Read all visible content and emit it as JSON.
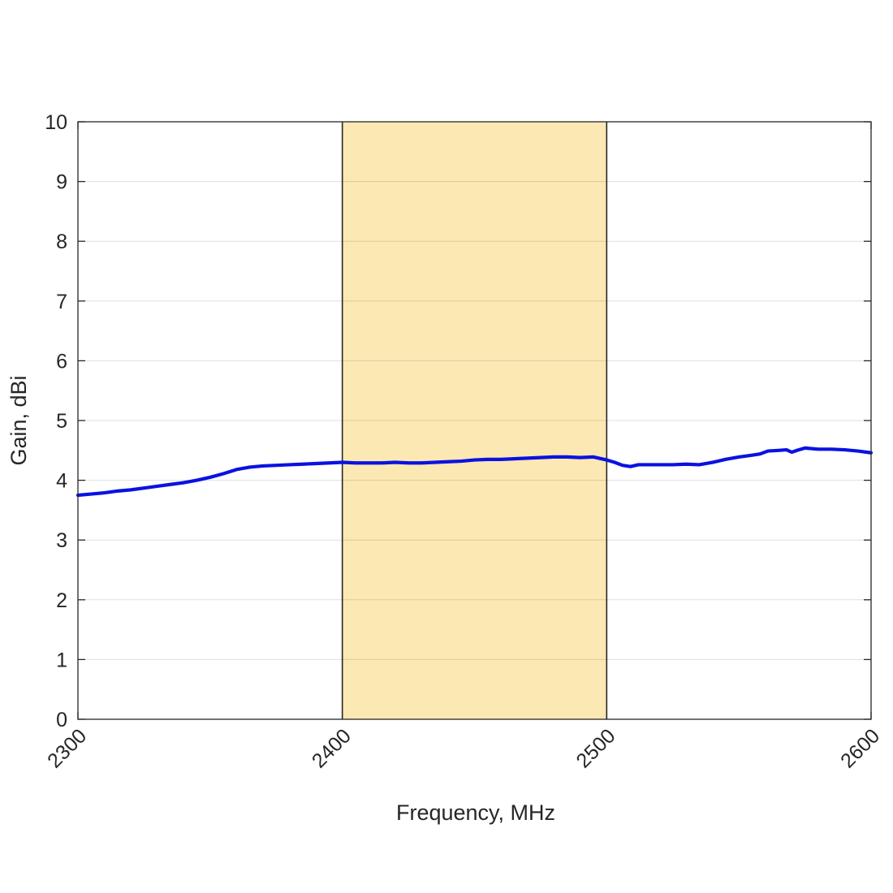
{
  "chart_data": {
    "type": "line",
    "xlabel": "Frequency, MHz",
    "ylabel": "Gain, dBi",
    "xlim": [
      2300,
      2600
    ],
    "ylim": [
      0,
      10
    ],
    "x_ticks": [
      2300,
      2400,
      2500,
      2600
    ],
    "y_ticks": [
      0,
      1,
      2,
      3,
      4,
      5,
      6,
      7,
      8,
      9,
      10
    ],
    "grid": "horizontal",
    "highlight_band": {
      "x_start": 2400,
      "x_end": 2500,
      "color": "#fce8b2",
      "edge_color": "#262626"
    },
    "series": [
      {
        "color": "#0a12e0",
        "x": [
          2300,
          2305,
          2310,
          2315,
          2320,
          2325,
          2330,
          2335,
          2340,
          2345,
          2350,
          2355,
          2360,
          2365,
          2370,
          2375,
          2380,
          2385,
          2390,
          2395,
          2400,
          2405,
          2410,
          2415,
          2420,
          2425,
          2430,
          2435,
          2440,
          2445,
          2450,
          2455,
          2460,
          2465,
          2470,
          2475,
          2480,
          2485,
          2490,
          2495,
          2500,
          2503,
          2506,
          2509,
          2512,
          2515,
          2520,
          2525,
          2530,
          2535,
          2540,
          2545,
          2550,
          2555,
          2558,
          2561,
          2565,
          2568,
          2570,
          2572,
          2575,
          2580,
          2585,
          2590,
          2595,
          2600
        ],
        "y": [
          3.75,
          3.77,
          3.79,
          3.82,
          3.84,
          3.87,
          3.9,
          3.93,
          3.96,
          4.0,
          4.05,
          4.11,
          4.18,
          4.22,
          4.24,
          4.25,
          4.26,
          4.27,
          4.28,
          4.29,
          4.3,
          4.29,
          4.29,
          4.29,
          4.3,
          4.29,
          4.29,
          4.3,
          4.31,
          4.32,
          4.34,
          4.35,
          4.35,
          4.36,
          4.37,
          4.38,
          4.39,
          4.39,
          4.38,
          4.39,
          4.34,
          4.3,
          4.25,
          4.23,
          4.26,
          4.26,
          4.26,
          4.26,
          4.27,
          4.26,
          4.3,
          4.35,
          4.39,
          4.42,
          4.44,
          4.49,
          4.5,
          4.51,
          4.47,
          4.5,
          4.54,
          4.52,
          4.52,
          4.51,
          4.49,
          4.46
        ]
      }
    ]
  }
}
